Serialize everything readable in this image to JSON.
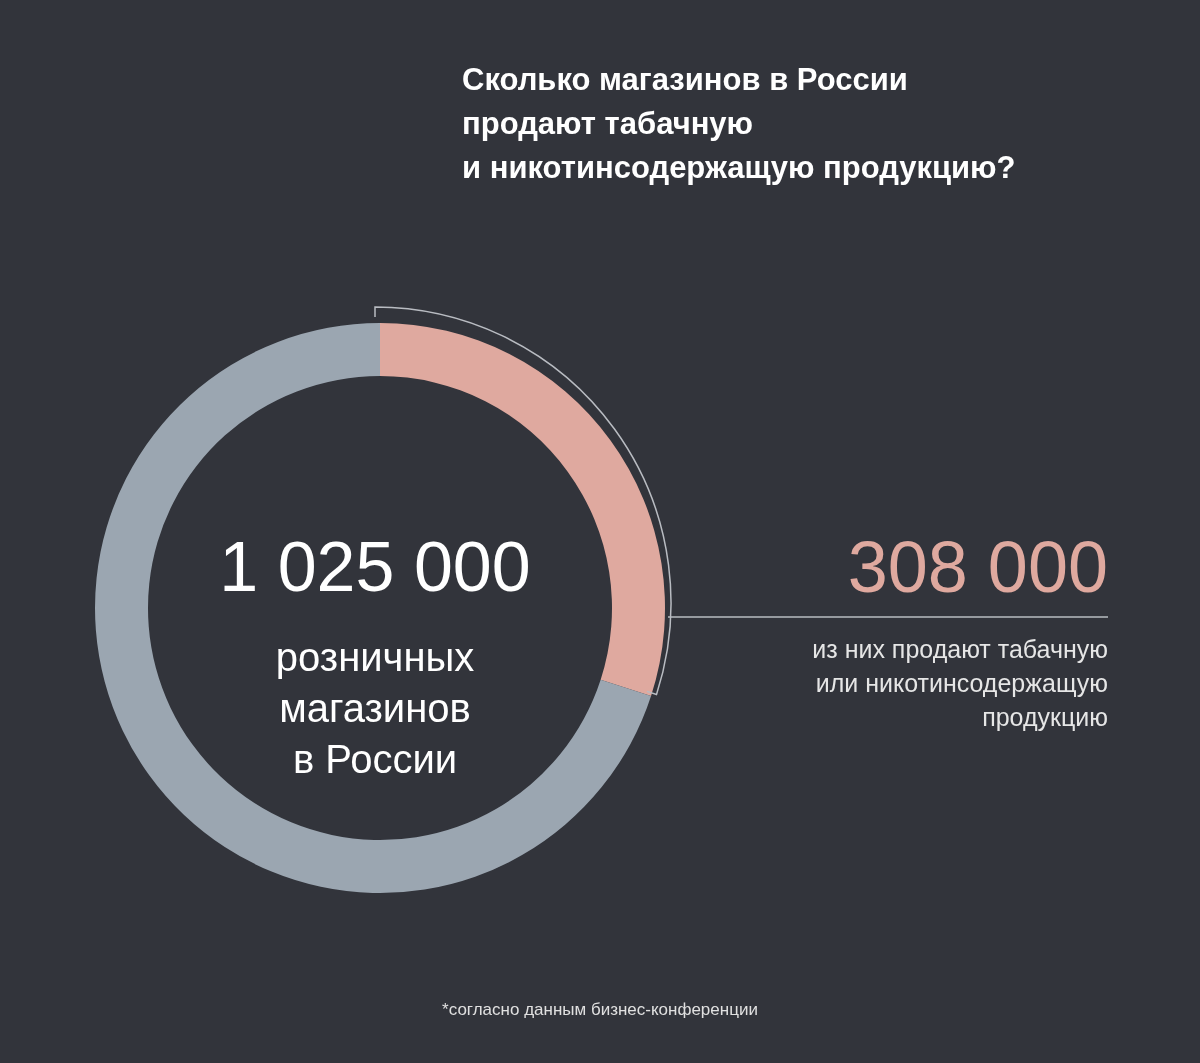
{
  "chart_data": {
    "type": "donut",
    "title": "Сколько магазинов в России\nпродают табачную\nи никотинсодержащую продукцию?",
    "categories": [
      null,
      null
    ],
    "values": [
      30,
      70
    ],
    "colors": [
      "#dfa99f",
      "#9ba6b1"
    ],
    "annotations": [
      "1 025 000",
      "розничных\nмагазинов\nв России",
      "308 000",
      "из них продают табачную\nили никотинсодержащую\nпродукцию",
      "*согласно данным бизнес-конференции"
    ]
  }
}
